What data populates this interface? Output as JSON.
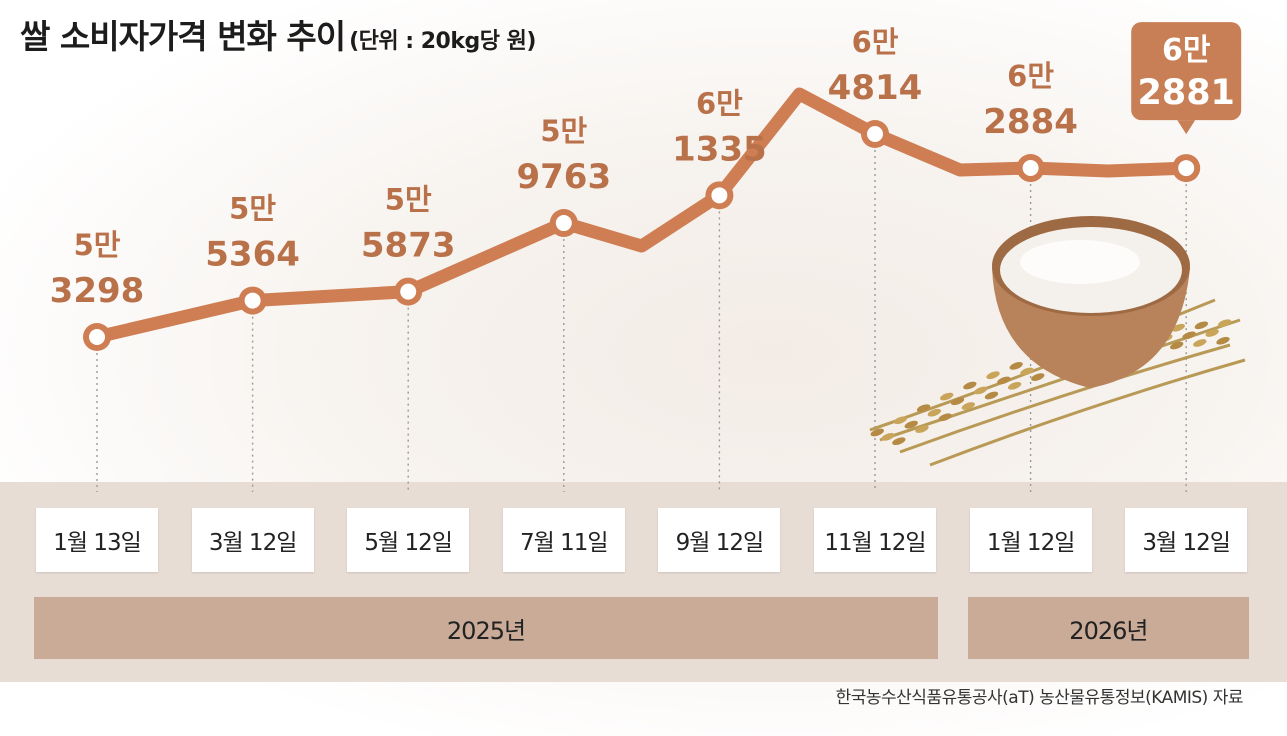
{
  "title": "쌀 소비자가격 변화 추이",
  "unit": "(단위 : 20kg당 원)",
  "source": "한국농수산식품유통공사(aT) 농산물유통정보(KAMIS) 자료",
  "colors": {
    "line": "#cf7d52",
    "label": "#b9714a",
    "bubble": "#c87f55",
    "year_bar": "#c9ab98",
    "band": "#e8ddd5"
  },
  "years": [
    {
      "label": "2025년",
      "span": [
        0,
        5
      ]
    },
    {
      "label": "2026년",
      "span": [
        6,
        7
      ]
    }
  ],
  "chart_data": {
    "type": "line",
    "categories": [
      "1월 13일",
      "3월 12일",
      "5월 12일",
      "7월 11일",
      "9월 12일",
      "11월 12일",
      "1월 12일",
      "3월 12일"
    ],
    "values": [
      53298,
      55364,
      55873,
      59763,
      61335,
      64814,
      62884,
      62881
    ],
    "labels_top": [
      "5만",
      "5만",
      "5만",
      "5만",
      "6만",
      "6만",
      "6만",
      "6만"
    ],
    "labels_bottom": [
      "3298",
      "5364",
      "5873",
      "9763",
      "1335",
      "4814",
      "2884",
      "2881"
    ],
    "highlight_index": 7,
    "grid": false,
    "legend": "none"
  }
}
